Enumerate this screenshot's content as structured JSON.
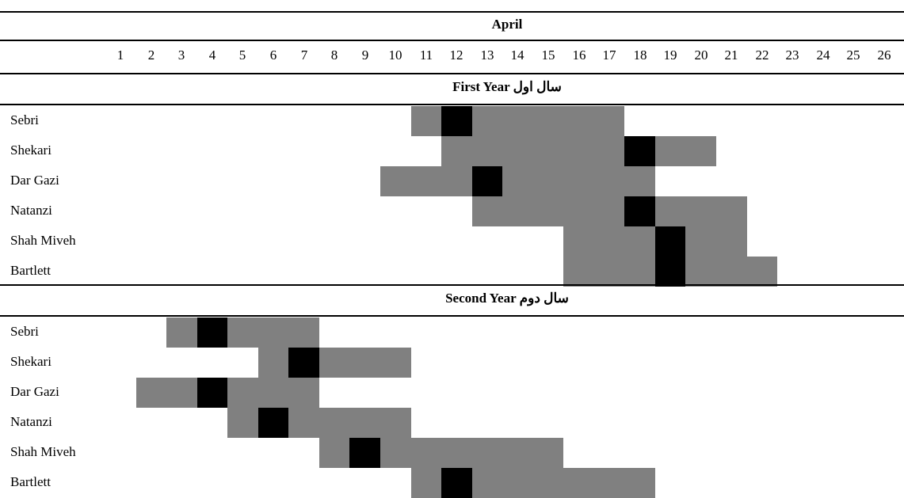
{
  "chart_data": {
    "type": "table",
    "month": "April",
    "days": [
      "1",
      "2",
      "3",
      "4",
      "5",
      "6",
      "7",
      "8",
      "9",
      "10",
      "11",
      "12",
      "13",
      "14",
      "15",
      "16",
      "17",
      "18",
      "19",
      "20",
      "21",
      "22",
      "23",
      "24",
      "25",
      "26"
    ],
    "colors": {
      "gray": "#808080",
      "black": "#000000"
    },
    "sections": [
      {
        "title": "First Year   سال اول",
        "rows": [
          {
            "name": "Sebri",
            "start": 11,
            "end": 17,
            "peak": 12
          },
          {
            "name": "Shekari",
            "start": 12,
            "end": 20,
            "peak": 18
          },
          {
            "name": "Dar Gazi",
            "start": 10,
            "end": 18,
            "peak": 13
          },
          {
            "name": "Natanzi",
            "start": 13,
            "end": 21,
            "peak": 18
          },
          {
            "name": "Shah Miveh",
            "start": 16,
            "end": 21,
            "peak": 19
          },
          {
            "name": "Bartlett",
            "start": 16,
            "end": 22,
            "peak": 19
          }
        ]
      },
      {
        "title": "Second Year   سال دوم",
        "rows": [
          {
            "name": "Sebri",
            "start": 3,
            "end": 7,
            "peak": 4
          },
          {
            "name": "Shekari",
            "start": 6,
            "end": 10,
            "peak": 7
          },
          {
            "name": "Dar Gazi",
            "start": 2,
            "end": 7,
            "peak": 4
          },
          {
            "name": "Natanzi",
            "start": 5,
            "end": 10,
            "peak": 6
          },
          {
            "name": "Shah Miveh",
            "start": 8,
            "end": 15,
            "peak": 9
          },
          {
            "name": "Bartlett",
            "start": 11,
            "end": 18,
            "peak": 12
          }
        ]
      }
    ]
  }
}
